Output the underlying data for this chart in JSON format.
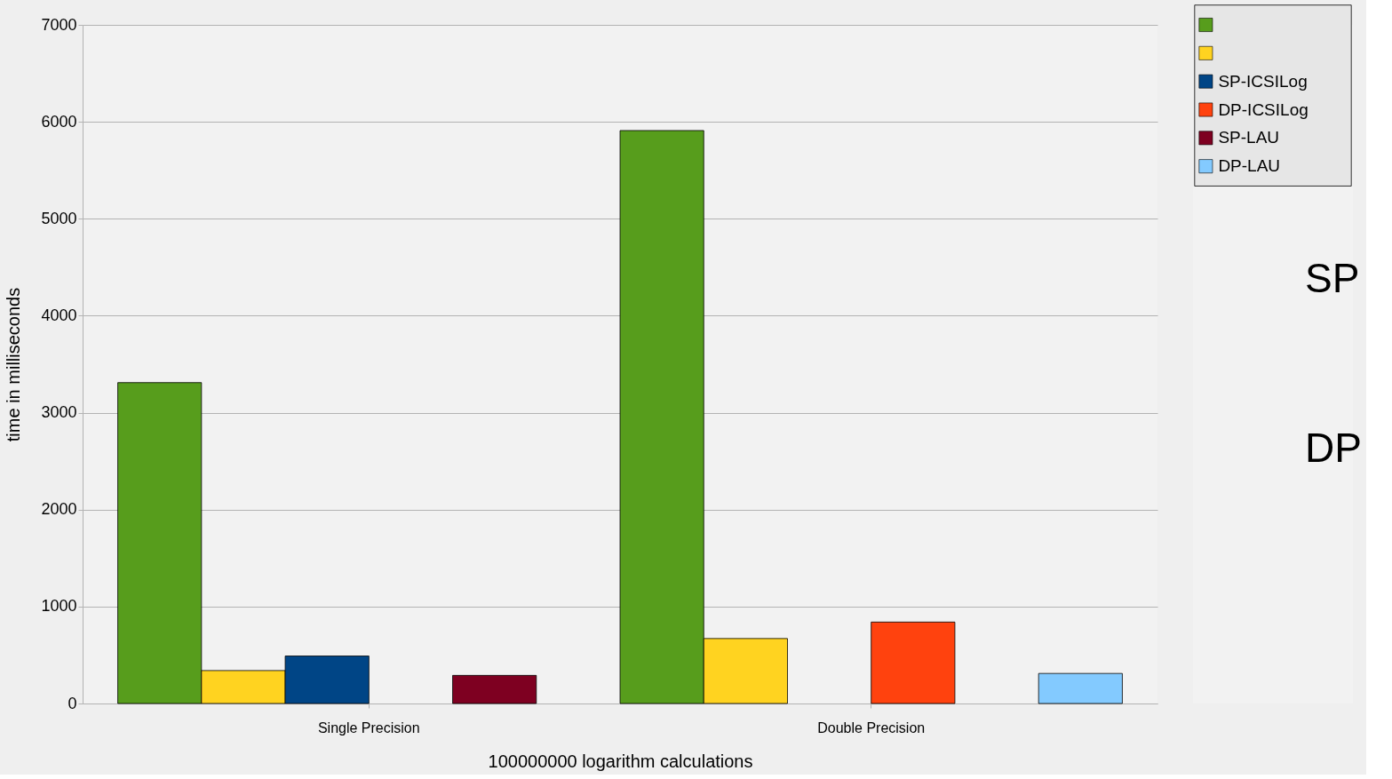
{
  "chart_data": {
    "type": "bar",
    "xlabel": "100000000 logarithm calculations",
    "ylabel": "time in milliseconds",
    "categories": [
      "Single Precision",
      "Double Precision"
    ],
    "series": [
      {
        "color": "#579d1c",
        "values": [
          3310,
          5910
        ]
      },
      {
        "color": "#ffd320",
        "values": [
          340,
          670
        ]
      },
      {
        "name": "SP-ICSILog",
        "color": "#004586",
        "values": [
          490,
          null
        ]
      },
      {
        "name": "DP-ICSILog",
        "color": "#ff420e",
        "values": [
          null,
          840
        ]
      },
      {
        "name": "SP-LAU",
        "color": "#7e0021",
        "values": [
          290,
          null
        ]
      },
      {
        "name": "DP-LAU",
        "color": "#83caff",
        "values": [
          null,
          310
        ]
      }
    ],
    "ylim": [
      0,
      7000
    ],
    "yticks": [
      0,
      1000,
      2000,
      3000,
      4000,
      5000,
      6000,
      7000
    ],
    "grid": "y",
    "legend": "right",
    "annotations": [
      "SP",
      "DP"
    ]
  }
}
